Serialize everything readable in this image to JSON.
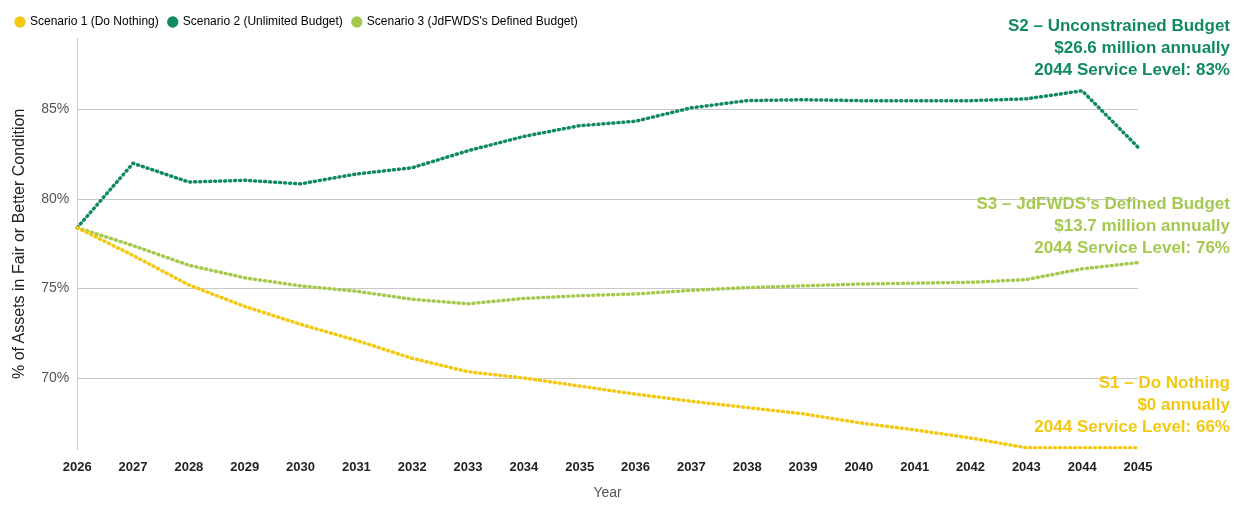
{
  "chart_data": {
    "type": "line",
    "xlabel": "Year",
    "ylabel": "% of Assets in Fair or Better Condition",
    "categories": [
      "2026",
      "2027",
      "2028",
      "2029",
      "2030",
      "2031",
      "2032",
      "2033",
      "2034",
      "2035",
      "2036",
      "2037",
      "2038",
      "2039",
      "2040",
      "2041",
      "2042",
      "2043",
      "2044",
      "2045"
    ],
    "series": [
      {
        "name": "Scenario 1 (Do Nothing)",
        "color": "#f2c811",
        "values": [
          78.4,
          76.85,
          75.2,
          74.0,
          73.0,
          72.1,
          71.1,
          70.35,
          70.0,
          69.55,
          69.1,
          68.7,
          68.35,
          68.0,
          67.5,
          67.1,
          66.65,
          66.1,
          66.1,
          66.1
        ]
      },
      {
        "name": "Scenario 2 (Unlimited Budget)",
        "color": "#118a5f",
        "values": [
          78.4,
          82.0,
          80.95,
          81.05,
          80.85,
          81.4,
          81.75,
          82.7,
          83.5,
          84.1,
          84.35,
          85.1,
          85.5,
          85.55,
          85.5,
          85.5,
          85.5,
          85.6,
          86.05,
          82.9
        ]
      },
      {
        "name": "Scenario 3 (JdFWDS's Defined Budget)",
        "color": "#a5c94e",
        "values": [
          78.4,
          77.4,
          76.3,
          75.6,
          75.15,
          74.85,
          74.4,
          74.15,
          74.45,
          74.6,
          74.7,
          74.9,
          75.05,
          75.15,
          75.25,
          75.3,
          75.35,
          75.5,
          76.1,
          76.45
        ]
      }
    ],
    "ylim": [
      66,
      89
    ],
    "yticks": [
      {
        "value": 70,
        "label": "70%"
      },
      {
        "value": 75,
        "label": "75%"
      },
      {
        "value": 80,
        "label": "80%"
      },
      {
        "value": 85,
        "label": "85%"
      }
    ],
    "grid": "y",
    "legend": "top left",
    "marker": "none",
    "line_style": "dotted",
    "annotations": [
      {
        "text": "S2 – Unconstrained Budget\n$26.6 million annually\n2044 Service Level: 83%",
        "x": "2044",
        "y": 86.05
      },
      {
        "text": "S3 – JdFWDS’s Defined Budget\n$13.7 million annually\n2044 Service Level: 76%",
        "x": "2044",
        "y": 76.1
      },
      {
        "text": "S1 – Do Nothing\n$0 annually\n2044 Service Level: 66%",
        "x": "2044",
        "y": 66.1
      }
    ]
  }
}
